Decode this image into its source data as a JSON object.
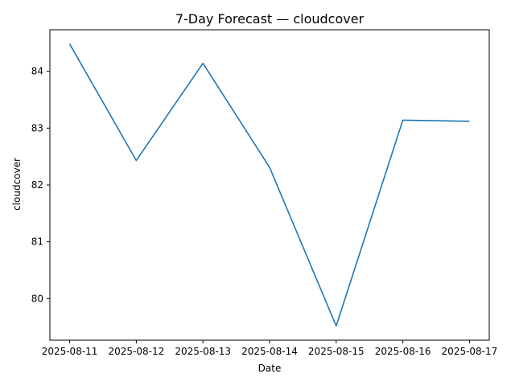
{
  "chart_data": {
    "type": "line",
    "title": "7-Day Forecast — cloudcover",
    "xlabel": "Date",
    "ylabel": "cloudcover",
    "x": [
      "2025-08-11",
      "2025-08-12",
      "2025-08-13",
      "2025-08-14",
      "2025-08-15",
      "2025-08-16",
      "2025-08-17"
    ],
    "series": [
      {
        "values": [
          84.48,
          82.43,
          84.14,
          82.31,
          79.52,
          83.14,
          83.12
        ]
      }
    ],
    "yticks": [
      80,
      81,
      82,
      83,
      84
    ],
    "ylim": [
      79.27,
      84.73
    ],
    "grid": false,
    "legend": "none",
    "colors": {
      "line": "#1f77b4"
    }
  }
}
